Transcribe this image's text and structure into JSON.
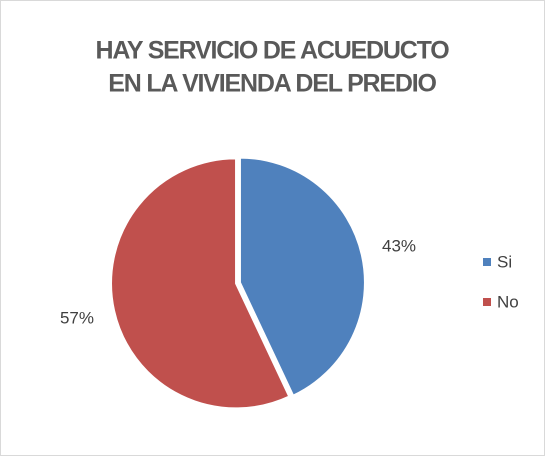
{
  "chart_data": {
    "type": "pie",
    "title": [
      "HAY SERVICIO DE ACUEDUCTO",
      "EN LA VIVIENDA DEL PREDIO"
    ],
    "categories": [
      "Si",
      "No"
    ],
    "values": [
      43,
      57
    ],
    "value_labels": [
      "43%",
      "57%"
    ],
    "colors": [
      "#4f81bd",
      "#c0504d"
    ],
    "legend": "right"
  }
}
